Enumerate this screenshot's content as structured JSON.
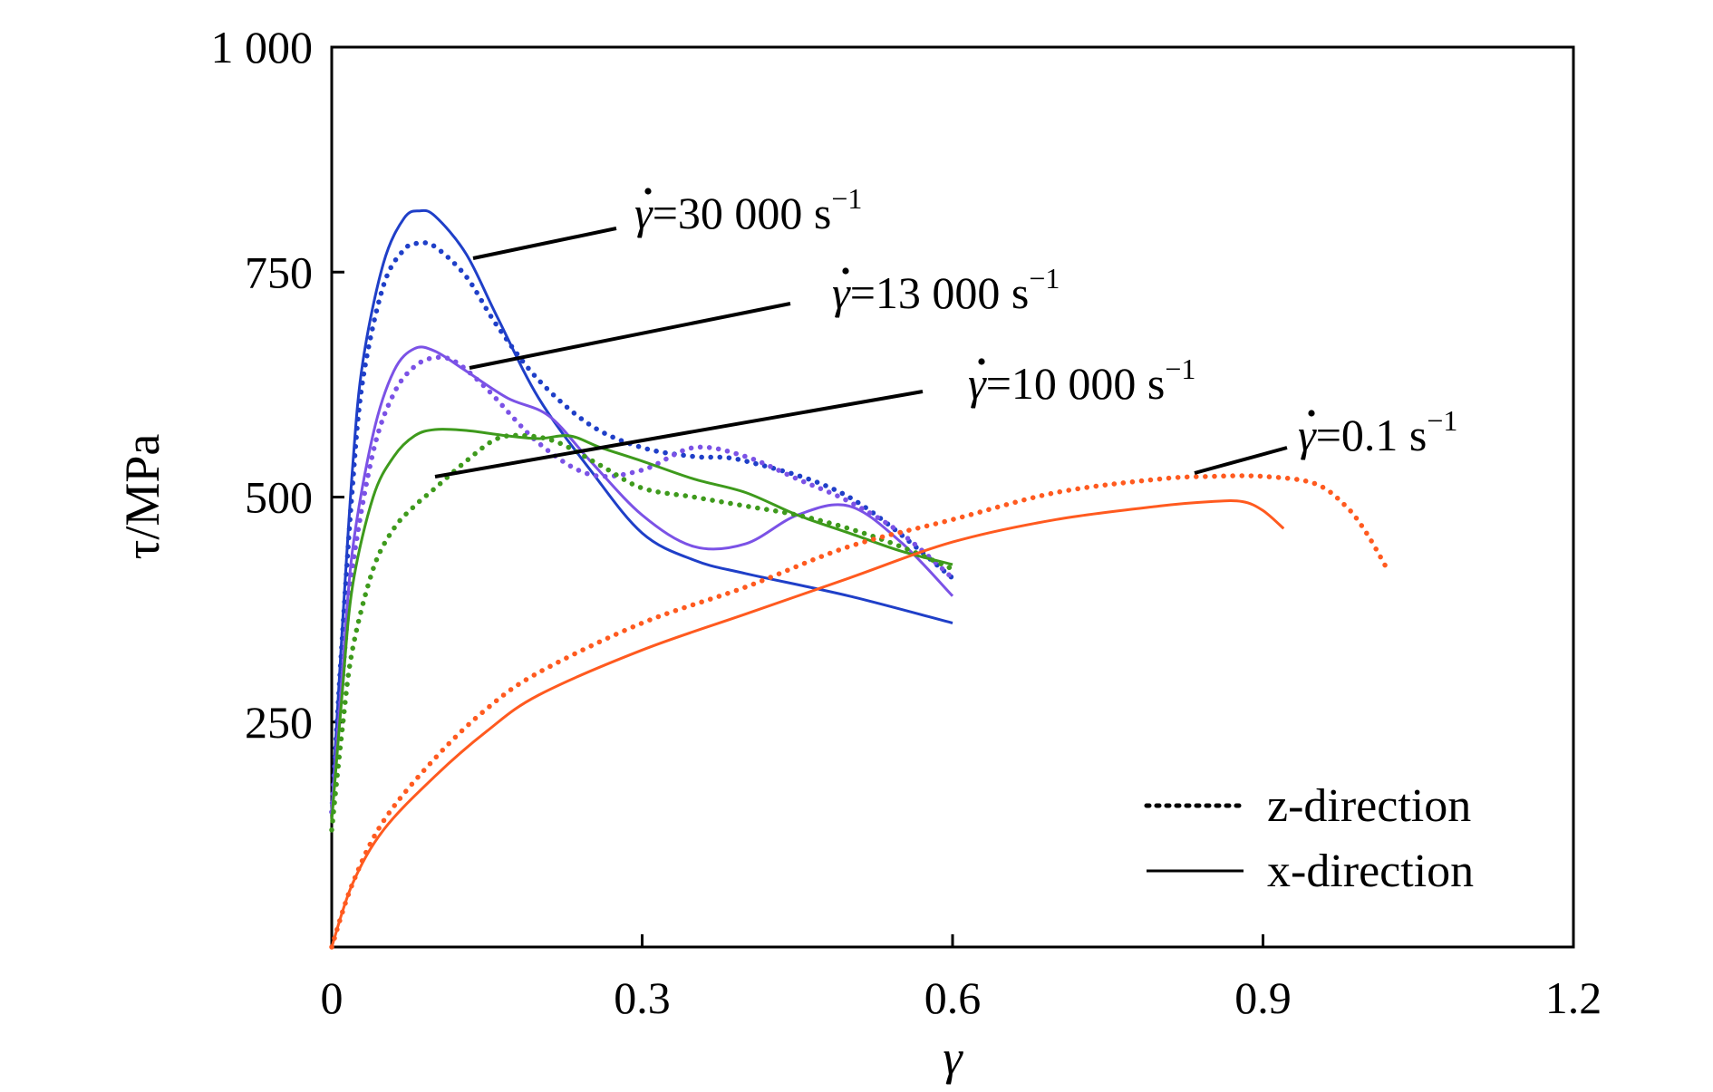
{
  "chart_data": {
    "type": "line",
    "xlabel": "γ",
    "ylabel": "τ/MPa",
    "xlim": [
      0,
      1.2
    ],
    "ylim": [
      0,
      1000
    ],
    "xticks": [
      0,
      0.3,
      0.6,
      0.9,
      1.2
    ],
    "xtick_labels": [
      "0",
      "0.3",
      "0.6",
      "0.9",
      "1.2"
    ],
    "yticks": [
      250,
      500,
      750,
      1000
    ],
    "ytick_labels": [
      "250",
      "500",
      "750",
      "1 000"
    ],
    "grid": false,
    "legend_position": "bottom-right",
    "legend": [
      {
        "label": "z-direction",
        "style": "dotted"
      },
      {
        "label": "x-direction",
        "style": "solid"
      }
    ],
    "annotations": [
      {
        "rate": "30 000",
        "unit": "s",
        "exp": "−1"
      },
      {
        "rate": "13 000",
        "unit": "s",
        "exp": "−1"
      },
      {
        "rate": "10 000",
        "unit": "s",
        "exp": "−1"
      },
      {
        "rate": "0.1",
        "unit": "s",
        "exp": "−1"
      }
    ],
    "series": [
      {
        "rate": "30 000 s−1",
        "direction": "x-direction",
        "style": "solid",
        "color": "#1f3fc8",
        "x": [
          0,
          0.01,
          0.02,
          0.03,
          0.05,
          0.07,
          0.085,
          0.1,
          0.13,
          0.16,
          0.2,
          0.25,
          0.3,
          0.35,
          0.4,
          0.5,
          0.6
        ],
        "y": [
          150,
          350,
          530,
          650,
          760,
          810,
          818,
          812,
          770,
          700,
          610,
          530,
          460,
          430,
          415,
          390,
          360
        ]
      },
      {
        "rate": "30 000 s−1",
        "direction": "z-direction",
        "style": "dotted",
        "color": "#1f3fc8",
        "x": [
          0,
          0.01,
          0.02,
          0.03,
          0.05,
          0.07,
          0.085,
          0.1,
          0.13,
          0.16,
          0.2,
          0.25,
          0.3,
          0.35,
          0.4,
          0.5,
          0.6
        ],
        "y": [
          150,
          340,
          510,
          630,
          735,
          775,
          782,
          778,
          745,
          690,
          630,
          580,
          555,
          545,
          540,
          500,
          410
        ]
      },
      {
        "rate": "13 000 s−1",
        "direction": "x-direction",
        "style": "solid",
        "color": "#7b52e6",
        "x": [
          0,
          0.01,
          0.02,
          0.04,
          0.06,
          0.08,
          0.1,
          0.13,
          0.17,
          0.21,
          0.25,
          0.3,
          0.35,
          0.4,
          0.45,
          0.5,
          0.55,
          0.6
        ],
        "y": [
          150,
          300,
          440,
          570,
          640,
          665,
          662,
          640,
          610,
          590,
          540,
          480,
          445,
          448,
          480,
          490,
          450,
          390
        ]
      },
      {
        "rate": "13 000 s−1",
        "direction": "z-direction",
        "style": "dotted",
        "color": "#7b52e6",
        "x": [
          0,
          0.01,
          0.02,
          0.04,
          0.06,
          0.08,
          0.1,
          0.12,
          0.15,
          0.2,
          0.25,
          0.3,
          0.35,
          0.4,
          0.45,
          0.5,
          0.55,
          0.6
        ],
        "y": [
          150,
          290,
          420,
          550,
          615,
          645,
          655,
          650,
          620,
          560,
          525,
          530,
          555,
          545,
          520,
          495,
          460,
          410
        ]
      },
      {
        "rate": "10 000 s−1",
        "direction": "x-direction",
        "style": "solid",
        "color": "#3e9a1c",
        "x": [
          0,
          0.01,
          0.02,
          0.04,
          0.06,
          0.08,
          0.1,
          0.13,
          0.17,
          0.2,
          0.23,
          0.26,
          0.3,
          0.35,
          0.4,
          0.45,
          0.5,
          0.55,
          0.6
        ],
        "y": [
          140,
          280,
          400,
          500,
          545,
          568,
          575,
          574,
          568,
          565,
          568,
          555,
          540,
          520,
          505,
          480,
          460,
          440,
          425
        ]
      },
      {
        "rate": "10 000 s−1",
        "direction": "z-direction",
        "style": "dotted",
        "color": "#3e9a1c",
        "x": [
          0,
          0.01,
          0.02,
          0.04,
          0.06,
          0.08,
          0.1,
          0.13,
          0.16,
          0.19,
          0.22,
          0.26,
          0.3,
          0.35,
          0.4,
          0.45,
          0.5,
          0.55,
          0.6
        ],
        "y": [
          130,
          240,
          330,
          420,
          465,
          490,
          510,
          540,
          565,
          568,
          560,
          535,
          510,
          500,
          490,
          480,
          465,
          445,
          420
        ]
      },
      {
        "rate": "0.1 s−1",
        "direction": "x-direction",
        "style": "solid",
        "color": "#ff5a1f",
        "x": [
          0,
          0.02,
          0.05,
          0.1,
          0.15,
          0.2,
          0.3,
          0.4,
          0.5,
          0.6,
          0.7,
          0.8,
          0.85,
          0.88,
          0.9,
          0.92
        ],
        "y": [
          0,
          70,
          130,
          190,
          240,
          280,
          330,
          370,
          410,
          450,
          475,
          490,
          495,
          495,
          485,
          465
        ]
      },
      {
        "rate": "0.1 s−1",
        "direction": "z-direction",
        "style": "dotted",
        "color": "#ff5a1f",
        "x": [
          0,
          0.02,
          0.05,
          0.1,
          0.15,
          0.2,
          0.3,
          0.4,
          0.5,
          0.6,
          0.7,
          0.8,
          0.85,
          0.9,
          0.95,
          0.98,
          1.0,
          1.02
        ],
        "y": [
          0,
          70,
          140,
          210,
          265,
          305,
          360,
          400,
          445,
          475,
          505,
          520,
          523,
          523,
          515,
          490,
          460,
          420
        ]
      }
    ]
  }
}
